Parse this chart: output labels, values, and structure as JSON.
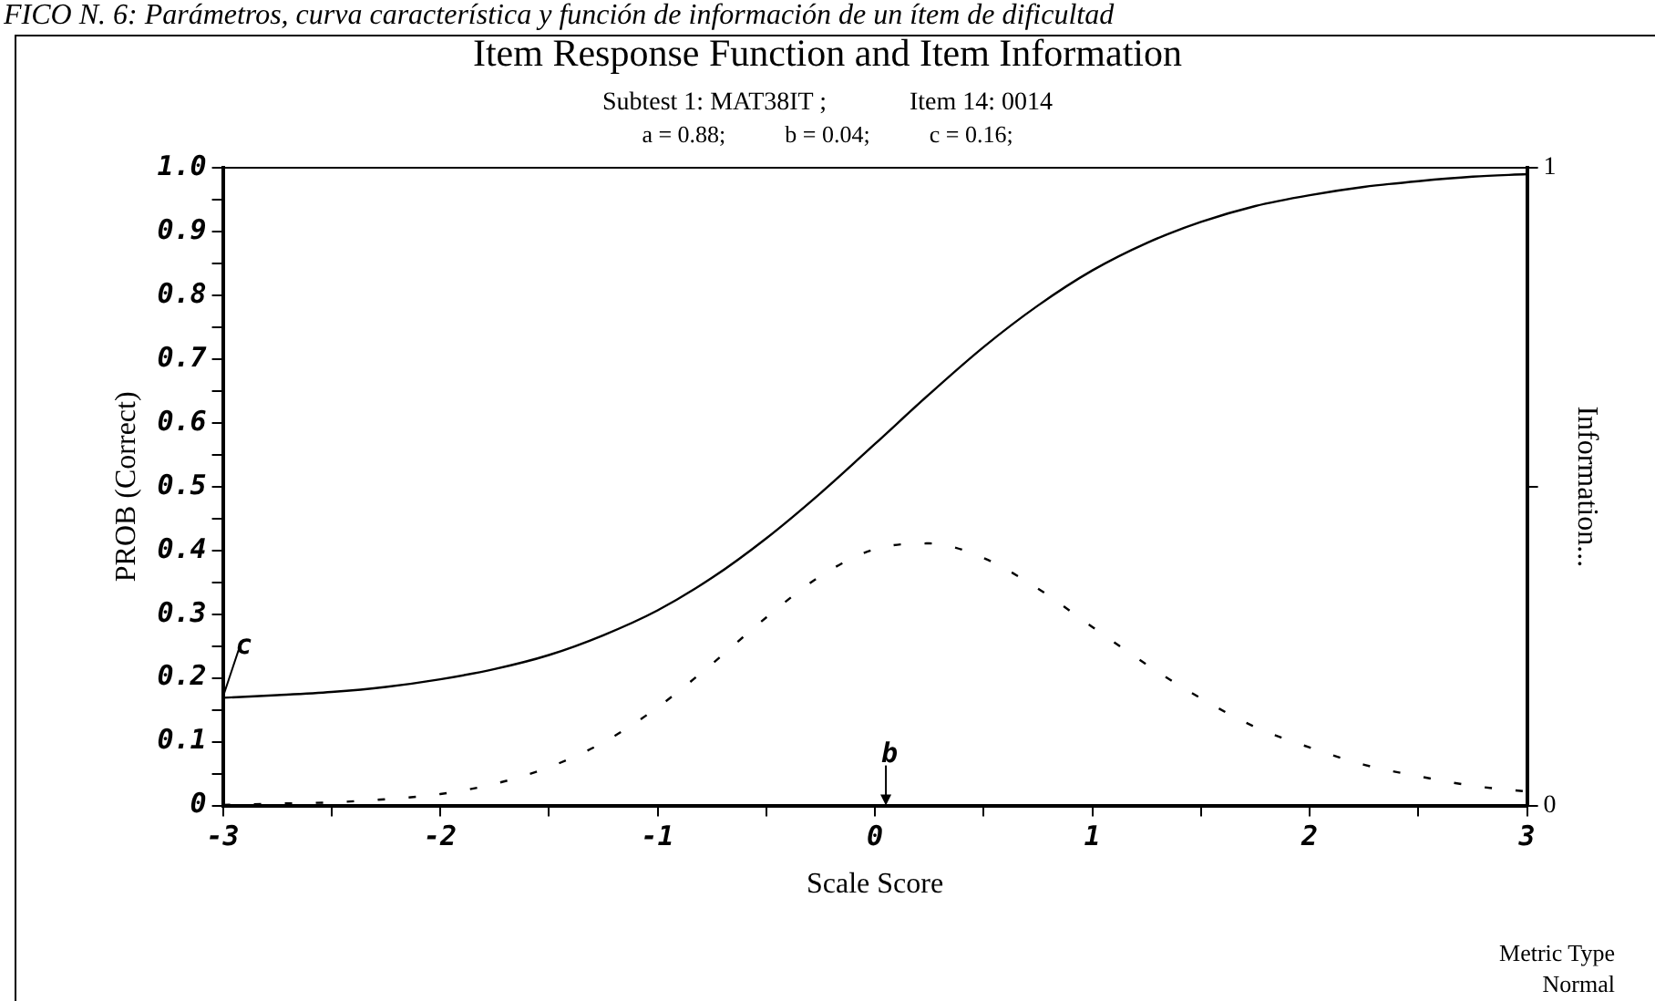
{
  "chart_data": {
    "type": "line",
    "title": "Item Response Function and Item Information",
    "subtitle": "Subtest 1: MAT38IT ;             Item 14: 0014",
    "xlabel": "Scale Score",
    "ylabel": "PROB (Correct)",
    "y2label": "Information...",
    "x": [
      -3,
      -2.75,
      -2.5,
      -2.25,
      -2,
      -1.75,
      -1.5,
      -1.25,
      -1,
      -0.75,
      -0.5,
      -0.25,
      0,
      0.25,
      0.5,
      0.75,
      1,
      1.25,
      1.5,
      1.75,
      2,
      2.25,
      2.5,
      2.75,
      3
    ],
    "series": [
      {
        "color": "#000000",
        "line_style": "solid",
        "values": [
          0.169,
          0.173,
          0.178,
          0.186,
          0.198,
          0.214,
          0.236,
          0.267,
          0.306,
          0.357,
          0.419,
          0.49,
          0.567,
          0.645,
          0.719,
          0.784,
          0.839,
          0.882,
          0.915,
          0.94,
          0.957,
          0.97,
          0.979,
          0.986,
          0.99
        ]
      },
      {
        "color": "#000000",
        "line_style": "dashed",
        "axis": "y2",
        "values": [
          0.001,
          0.003,
          0.005,
          0.01,
          0.018,
          0.034,
          0.06,
          0.099,
          0.154,
          0.222,
          0.295,
          0.36,
          0.402,
          0.411,
          0.388,
          0.34,
          0.28,
          0.221,
          0.168,
          0.123,
          0.091,
          0.064,
          0.046,
          0.031,
          0.022
        ]
      }
    ],
    "xlim": [
      -3,
      3
    ],
    "xticks": [
      -3,
      {
        "value": -2.5,
        "label": null
      },
      -2,
      {
        "value": -1.5,
        "label": null
      },
      -1,
      {
        "value": -0.5,
        "label": null
      },
      0,
      {
        "value": 0.5,
        "label": null
      },
      1,
      {
        "value": 1.5,
        "label": null
      },
      2,
      {
        "value": 2.5,
        "label": null
      },
      3
    ],
    "ylim": [
      0,
      1
    ],
    "yticks": [
      0,
      {
        "value": 0.05,
        "label": null
      },
      0.1,
      {
        "value": 0.15,
        "label": null
      },
      0.2,
      {
        "value": 0.25,
        "label": null
      },
      0.3,
      {
        "value": 0.35,
        "label": null
      },
      0.4,
      {
        "value": 0.45,
        "label": null
      },
      0.5,
      {
        "value": 0.55,
        "label": null
      },
      0.6,
      {
        "value": 0.65,
        "label": null
      },
      0.7,
      {
        "value": 0.75,
        "label": null
      },
      0.8,
      {
        "value": 0.85,
        "label": null
      },
      0.9,
      {
        "value": 0.95,
        "label": null
      },
      {
        "value": 1,
        "label": "1.0"
      }
    ],
    "y2lim": [
      0,
      1
    ],
    "y2ticks": [
      0,
      {
        "value": 0.5,
        "label": null
      },
      1
    ],
    "marker": "none",
    "grid": false,
    "legend": false,
    "annotations": [
      "FICO N. 6: Parámetros, curva característica y función de información de un ítem de dificultad",
      "a = 0.88;          b = 0.04;          c = 0.16;",
      "Metric Type",
      "Normal",
      {
        "text": "c",
        "x": -3,
        "y": 0.17
      },
      "b"
    ]
  }
}
